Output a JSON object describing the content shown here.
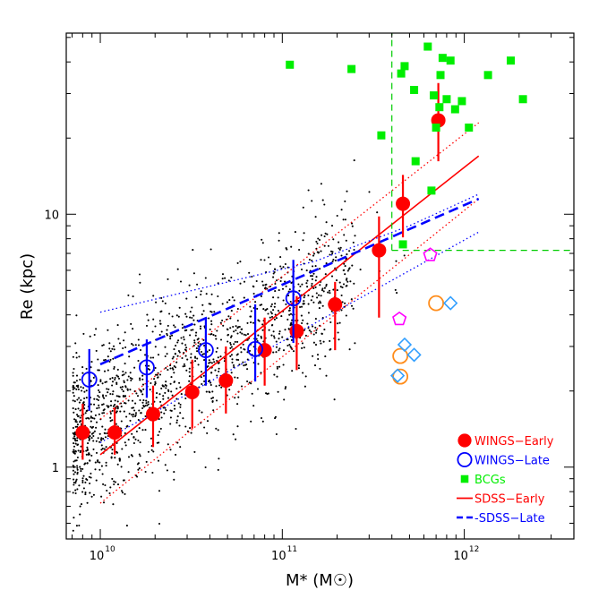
{
  "chart_data": {
    "type": "scatter",
    "title": "",
    "xlabel": "M* (M☉)",
    "ylabel": "Re (kpc)",
    "xscale": "log",
    "yscale": "log",
    "xlim": [
      6500000000.0,
      4000000000000.0
    ],
    "ylim": [
      0.52,
      52
    ],
    "grid": false,
    "x_ticks": [
      {
        "value": 10000000000.0,
        "label": "10"
      },
      {
        "value": 100000000000.0,
        "label": "10"
      },
      {
        "value": 1000000000000.0,
        "label": "10"
      }
    ],
    "x_tick_exponents": [
      "10",
      "11",
      "12"
    ],
    "y_ticks": [
      {
        "value": 1,
        "label": "1"
      },
      {
        "value": 10,
        "label": "10"
      }
    ],
    "legend_position": "bottom-right",
    "legend": [
      {
        "label": "WINGS−Early",
        "marker": "filled-circle",
        "color": "#ff0000"
      },
      {
        "label": "WINGS−Late",
        "marker": "open-circle",
        "color": "#0000ff"
      },
      {
        "label": "BCGs",
        "marker": "filled-square",
        "color": "#00ee00"
      },
      {
        "label": "SDSS−Early",
        "marker": "solid-line",
        "color": "#ff0000"
      },
      {
        "label": "-SDSS−Late",
        "marker": "dashed-line",
        "color": "#0000ff"
      }
    ],
    "series": [
      {
        "name": "WINGS−Early",
        "color": "#ff0000",
        "marker": "filled-circle",
        "points": [
          {
            "x": 8000000000.0,
            "y": 1.37,
            "ylo": 1.07,
            "yhi": 1.78
          },
          {
            "x": 12000000000.0,
            "y": 1.37,
            "ylo": 1.12,
            "yhi": 1.72
          },
          {
            "x": 19500000000.0,
            "y": 1.62,
            "ylo": 1.2,
            "yhi": 2.1
          },
          {
            "x": 32000000000.0,
            "y": 1.98,
            "ylo": 1.42,
            "yhi": 2.66
          },
          {
            "x": 49000000000.0,
            "y": 2.2,
            "ylo": 1.63,
            "yhi": 3.0
          },
          {
            "x": 80000000000.0,
            "y": 2.9,
            "ylo": 2.1,
            "yhi": 3.9
          },
          {
            "x": 120000000000.0,
            "y": 3.45,
            "ylo": 2.42,
            "yhi": 4.75
          },
          {
            "x": 195000000000.0,
            "y": 4.4,
            "ylo": 2.9,
            "yhi": 5.4
          },
          {
            "x": 340000000000.0,
            "y": 7.2,
            "ylo": 3.9,
            "yhi": 9.8
          },
          {
            "x": 460000000000.0,
            "y": 11.0,
            "ylo": 8.1,
            "yhi": 14.3
          },
          {
            "x": 720000000000.0,
            "y": 23.5,
            "ylo": 16.2,
            "yhi": 33.0
          }
        ]
      },
      {
        "name": "WINGS−Late",
        "color": "#0000ff",
        "marker": "open-circle",
        "points": [
          {
            "x": 8700000000.0,
            "y": 2.22,
            "ylo": 1.67,
            "yhi": 2.93
          },
          {
            "x": 18000000000.0,
            "y": 2.48,
            "ylo": 1.88,
            "yhi": 3.2
          },
          {
            "x": 38000000000.0,
            "y": 2.9,
            "ylo": 2.1,
            "yhi": 3.9
          },
          {
            "x": 71000000000.0,
            "y": 2.93,
            "ylo": 2.18,
            "yhi": 4.4
          },
          {
            "x": 115000000000.0,
            "y": 4.65,
            "ylo": 3.1,
            "yhi": 6.6
          }
        ]
      },
      {
        "name": "BCGs",
        "color": "#00ee00",
        "marker": "filled-square",
        "points": [
          {
            "x": 110000000000.0,
            "y": 39.0
          },
          {
            "x": 240000000000.0,
            "y": 37.5
          },
          {
            "x": 350000000000.0,
            "y": 20.5
          },
          {
            "x": 450000000000.0,
            "y": 36.0
          },
          {
            "x": 470000000000.0,
            "y": 38.5
          },
          {
            "x": 530000000000.0,
            "y": 31.0
          },
          {
            "x": 540000000000.0,
            "y": 16.2
          },
          {
            "x": 630000000000.0,
            "y": 46.0
          },
          {
            "x": 660000000000.0,
            "y": 12.4
          },
          {
            "x": 680000000000.0,
            "y": 29.5
          },
          {
            "x": 700000000000.0,
            "y": 22.0
          },
          {
            "x": 730000000000.0,
            "y": 26.5
          },
          {
            "x": 740000000000.0,
            "y": 35.5
          },
          {
            "x": 760000000000.0,
            "y": 41.5
          },
          {
            "x": 800000000000.0,
            "y": 28.5
          },
          {
            "x": 840000000000.0,
            "y": 40.5
          },
          {
            "x": 890000000000.0,
            "y": 26.0
          },
          {
            "x": 970000000000.0,
            "y": 28.0
          },
          {
            "x": 1060000000000.0,
            "y": 22.0
          },
          {
            "x": 1350000000000.0,
            "y": 35.5
          },
          {
            "x": 1800000000000.0,
            "y": 40.5
          },
          {
            "x": 2100000000000.0,
            "y": 28.5
          },
          {
            "x": 460000000000.0,
            "y": 7.6
          }
        ]
      },
      {
        "name": "",
        "color": "#ff8c1a",
        "marker": "open-circle",
        "points": [
          {
            "x": 700000000000.0,
            "y": 4.45
          },
          {
            "x": 445000000000.0,
            "y": 2.75
          },
          {
            "x": 445000000000.0,
            "y": 2.28
          }
        ]
      },
      {
        "name": "",
        "color": "#33a0ff",
        "marker": "open-diamond",
        "points": [
          {
            "x": 840000000000.0,
            "y": 4.45
          },
          {
            "x": 470000000000.0,
            "y": 3.05
          },
          {
            "x": 530000000000.0,
            "y": 2.78
          },
          {
            "x": 430000000000.0,
            "y": 2.3
          }
        ]
      },
      {
        "name": "",
        "color": "#ff00ff",
        "marker": "open-pentagon",
        "points": [
          {
            "x": 650000000000.0,
            "y": 6.9
          },
          {
            "x": 440000000000.0,
            "y": 3.85
          }
        ]
      }
    ],
    "lines": [
      {
        "name": "SDSS−Early",
        "style": "solid",
        "color": "#ff0000",
        "x": [
          10000000000.0,
          1200000000000.0
        ],
        "y": [
          1.12,
          17.0
        ]
      },
      {
        "name": "SDSS−Early +σ",
        "style": "dotted",
        "color": "#ff0000",
        "x": [
          10000000000.0,
          1200000000000.0
        ],
        "y": [
          1.55,
          23.0
        ]
      },
      {
        "name": "SDSS−Early −σ",
        "style": "dotted",
        "color": "#ff0000",
        "x": [
          10000000000.0,
          1200000000000.0
        ],
        "y": [
          0.72,
          11.5
        ]
      },
      {
        "name": "-SDSS−Late",
        "style": "dashed",
        "color": "#0000ff",
        "x": [
          10000000000.0,
          1200000000000.0
        ],
        "y": [
          2.55,
          11.5
        ]
      },
      {
        "name": "SDSS−Late +σ",
        "style": "dotted",
        "color": "#0000ff",
        "x": [
          10000000000.0,
          150000000000.0,
          500000000000.0,
          1200000000000.0
        ],
        "y": [
          4.1,
          6.5,
          9.0,
          12.0
        ]
      },
      {
        "name": "SDSS−Late −σ",
        "style": "dotted",
        "color": "#0000ff",
        "x": [
          10000000000.0,
          1200000000000.0
        ],
        "y": [
          1.25,
          8.5
        ]
      },
      {
        "name": "BCG cut mass",
        "style": "dashed",
        "color": "#00cc00",
        "x": [
          400000000000.0,
          400000000000.0
        ],
        "y": [
          7.2,
          52
        ]
      },
      {
        "name": "BCG cut size",
        "style": "dashed",
        "color": "#00cc00",
        "x": [
          400000000000.0,
          4000000000000.0
        ],
        "y": [
          7.2,
          7.2
        ]
      }
    ]
  }
}
